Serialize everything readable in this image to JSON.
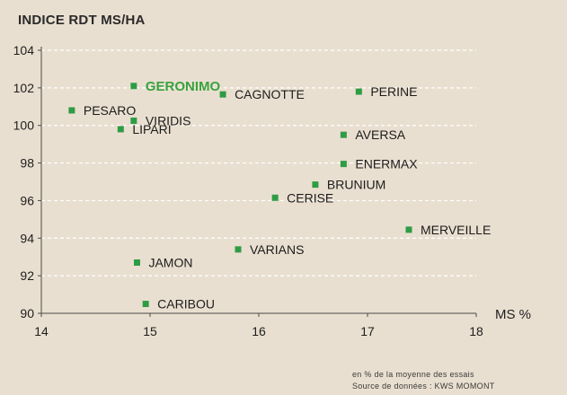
{
  "chart_data": {
    "type": "scatter",
    "title": "INDICE RDT MS/HA",
    "xlabel": "MS %",
    "ylabel": "",
    "xlim": [
      14,
      18
    ],
    "ylim": [
      90,
      104
    ],
    "xticks": [
      14,
      15,
      16,
      17,
      18
    ],
    "yticks": [
      90,
      92,
      94,
      96,
      98,
      100,
      102,
      104
    ],
    "grid": "horizontal-dashed",
    "marker_color": "#2e9c45",
    "highlight_color": "#3aa23e",
    "points": [
      {
        "label": "GERONIMO",
        "x": 14.85,
        "y": 102.1,
        "highlight": true
      },
      {
        "label": "CAGNOTTE",
        "x": 15.67,
        "y": 101.65
      },
      {
        "label": "PERINE",
        "x": 16.92,
        "y": 101.8
      },
      {
        "label": "PESARO",
        "x": 14.28,
        "y": 100.8
      },
      {
        "label": "VIRIDIS",
        "x": 14.85,
        "y": 100.25
      },
      {
        "label": "LIPARI",
        "x": 14.73,
        "y": 99.8
      },
      {
        "label": "AVERSA",
        "x": 16.78,
        "y": 99.5
      },
      {
        "label": "ENERMAX",
        "x": 16.78,
        "y": 97.95
      },
      {
        "label": "BRUNIUM",
        "x": 16.52,
        "y": 96.85
      },
      {
        "label": "CERISE",
        "x": 16.15,
        "y": 96.15
      },
      {
        "label": "MERVEILLE",
        "x": 17.38,
        "y": 94.45
      },
      {
        "label": "VARIANS",
        "x": 15.81,
        "y": 93.4
      },
      {
        "label": "JAMON",
        "x": 14.88,
        "y": 92.7
      },
      {
        "label": "CARIBOU",
        "x": 14.96,
        "y": 90.5
      }
    ]
  },
  "footnote": {
    "line1": "en % de la moyenne des essais",
    "line2": "Source de données : KWS MOMONT"
  }
}
